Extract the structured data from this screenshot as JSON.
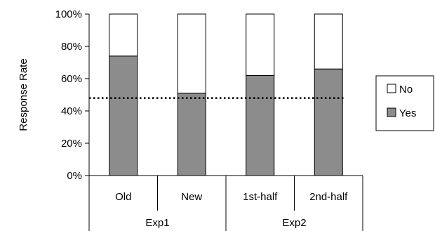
{
  "chart_data": {
    "type": "bar",
    "stacked": true,
    "percent_stacked": true,
    "title": "",
    "ylabel": "Response Rate",
    "ylim": [
      0,
      100
    ],
    "yticks": [
      "0%",
      "20%",
      "40%",
      "60%",
      "80%",
      "100%"
    ],
    "ytick_values": [
      0,
      20,
      40,
      60,
      80,
      100
    ],
    "categories": [
      "Old",
      "New",
      "1st-half",
      "2nd-half"
    ],
    "groups": [
      {
        "label": "Exp1",
        "categories": [
          "Old",
          "New"
        ]
      },
      {
        "label": "Exp2",
        "categories": [
          "1st-half",
          "2nd-half"
        ]
      }
    ],
    "series": [
      {
        "name": "Yes",
        "color": "#8c8c8c",
        "values": [
          74,
          51,
          62,
          66
        ]
      },
      {
        "name": "No",
        "color": "#ffffff",
        "values": [
          26,
          49,
          38,
          34
        ]
      }
    ],
    "reference_line": {
      "value": 48,
      "style": "dotted"
    },
    "legend": {
      "position": "right",
      "entries": [
        "No",
        "Yes"
      ]
    },
    "grid": false
  }
}
